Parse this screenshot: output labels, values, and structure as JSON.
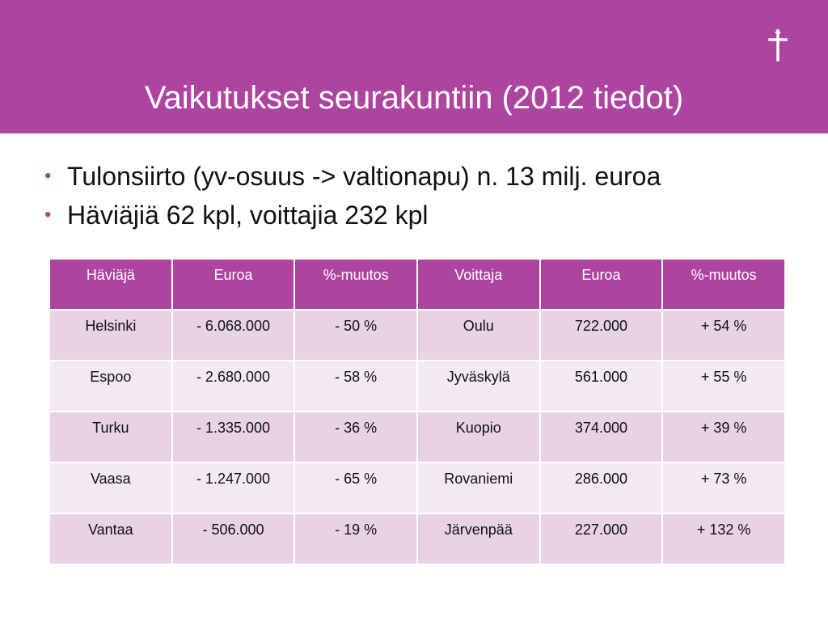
{
  "slide": {
    "title": "Vaikutukset seurakuntiin (2012 tiedot)",
    "bullets": [
      "Tulonsiirto (yv-osuus -> valtionapu) n. 13 milj. euroa",
      "Häviäjiä 62 kpl, voittajia 232 kpl"
    ]
  },
  "colors": {
    "accent": "#ad45a0",
    "row_dark": "#e7d3e4",
    "row_light": "#f3e9f2"
  },
  "icons": {
    "logo": "cross-icon"
  },
  "table": {
    "headers": [
      "Häviäjä",
      "Euroa",
      "%-muutos",
      "Voittaja",
      "Euroa",
      "%-muutos"
    ],
    "rows": [
      [
        "Helsinki",
        "- 6.068.000",
        "- 50 %",
        "Oulu",
        "722.000",
        "+ 54 %"
      ],
      [
        "Espoo",
        "- 2.680.000",
        "- 58 %",
        "Jyväskylä",
        "561.000",
        "+ 55 %"
      ],
      [
        "Turku",
        "- 1.335.000",
        "- 36 %",
        "Kuopio",
        "374.000",
        "+ 39 %"
      ],
      [
        "Vaasa",
        "- 1.247.000",
        "- 65 %",
        "Rovaniemi",
        "286.000",
        "+ 73 %"
      ],
      [
        "Vantaa",
        "- 506.000",
        "- 19 %",
        "Järvenpää",
        "227.000",
        "+ 132 %"
      ]
    ]
  }
}
